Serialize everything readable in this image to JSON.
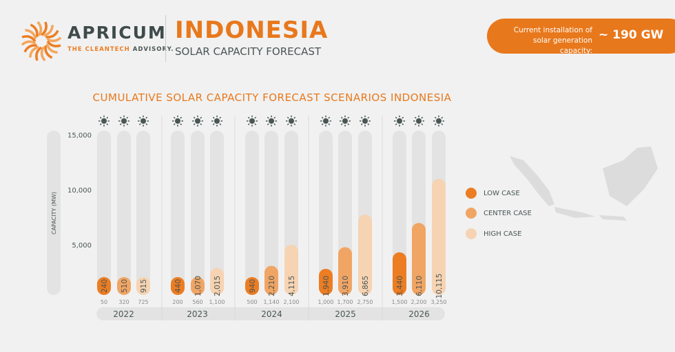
{
  "logo": {
    "name": "APRICUM",
    "tagline_orange": "THE CLEANTECH",
    "tagline_gray": "ADVISORY."
  },
  "header": {
    "title": "INDONESIA",
    "subtitle": "SOLAR CAPACITY FORECAST"
  },
  "badge": {
    "label": "Current installation of solar generation capacity:",
    "value": "~ 190 GW"
  },
  "colors": {
    "low": "#ec7d22",
    "center": "#f0a564",
    "high": "#f6d3b2",
    "track": "#e3e3e3",
    "accent": "#e8781c"
  },
  "chart_data": {
    "type": "bar",
    "title": "CUMULATIVE SOLAR CAPACITY FORECAST SCENARIOS INDONESIA",
    "ylabel": "CAPACITY (MW)",
    "ylim": [
      0,
      15000
    ],
    "yticks": [
      "5,000",
      "10,000",
      "15,000"
    ],
    "categories": [
      "2022",
      "2023",
      "2024",
      "2025",
      "2026"
    ],
    "icon": "sun-icon",
    "series": [
      {
        "name": "LOW CASE",
        "values": [
          240,
          440,
          940,
          1940,
          3440
        ],
        "labels": [
          "240",
          "440",
          "940",
          "1,940",
          "3,440"
        ],
        "lower": [
          "50",
          "200",
          "500",
          "1,000",
          "1,500"
        ]
      },
      {
        "name": "CENTER CASE",
        "values": [
          510,
          1070,
          2210,
          3910,
          6110
        ],
        "labels": [
          "510",
          "1,070",
          "2,210",
          "3,910",
          "6,110"
        ],
        "lower": [
          "320",
          "560",
          "1,140",
          "1,700",
          "2,200"
        ]
      },
      {
        "name": "HIGH CASE",
        "values": [
          915,
          2015,
          4115,
          6865,
          10115
        ],
        "labels": [
          "915",
          "2,015",
          "4,115",
          "6,865",
          "10,115"
        ],
        "lower": [
          "725",
          "1,100",
          "2,100",
          "2,750",
          "3,250"
        ]
      }
    ],
    "legend": "right"
  }
}
